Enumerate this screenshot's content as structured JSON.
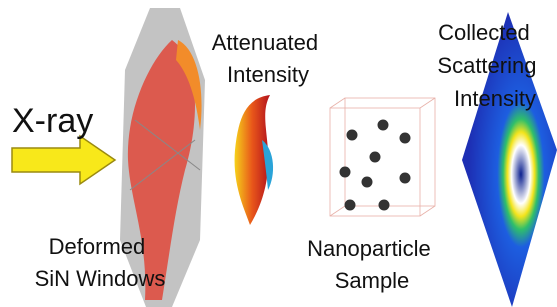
{
  "labels": {
    "xray": "X-ray",
    "attenuated": [
      "Attenuated",
      "Intensity"
    ],
    "collected": [
      "Collected",
      "Scattering",
      "Intensity"
    ],
    "windows": [
      "Deformed",
      "SiN Windows"
    ],
    "sample": [
      "Nanoparticle",
      "Sample"
    ]
  }
}
